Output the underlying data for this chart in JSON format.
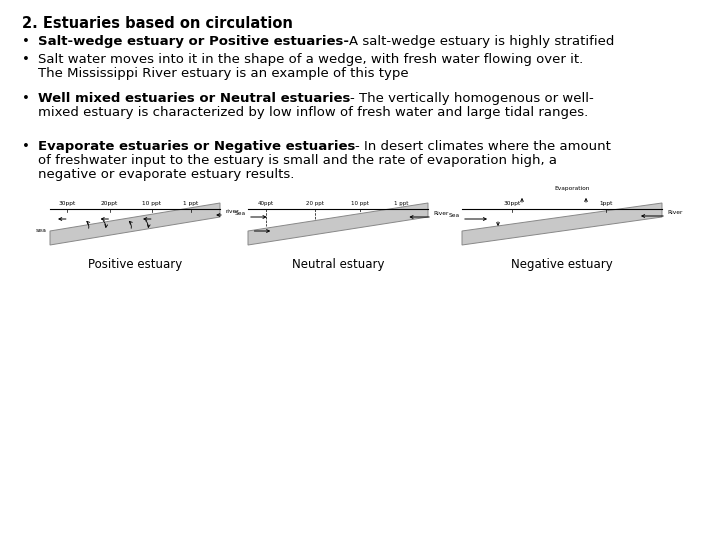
{
  "bg_color": "#ffffff",
  "text_color": "#000000",
  "title": "2. Estuaries based on circulation",
  "b1_bold": "Salt-wedge estuary or Positive estuaries-",
  "b1_norm": "A salt-wedge estuary is highly stratified",
  "b2_line1": "Salt water moves into it in the shape of a wedge, with fresh water flowing over it.",
  "b2_line2": "The Mississippi River estuary is an example of this type",
  "b3_bold": "Well mixed estuaries or Neutral estuaries",
  "b3_norm": "- The vertically homogenous or well-",
  "b3_line2": "mixed estuary is characterized by low inflow of fresh water and large tidal ranges.",
  "b4_bold": "Evaporate estuaries or Negative estuaries",
  "b4_norm": "- In desert climates where the amount",
  "b4_line2": "of freshwater input to the estuary is small and the rate of evaporation high, a",
  "b4_line3": "negative or evaporate estuary results.",
  "lbl1": "Positive estuary",
  "lbl2": "Neutral estuary",
  "lbl3": "Negative estuary",
  "title_fs": 10.5,
  "body_fs": 9.5,
  "lbl_fs": 8.5
}
